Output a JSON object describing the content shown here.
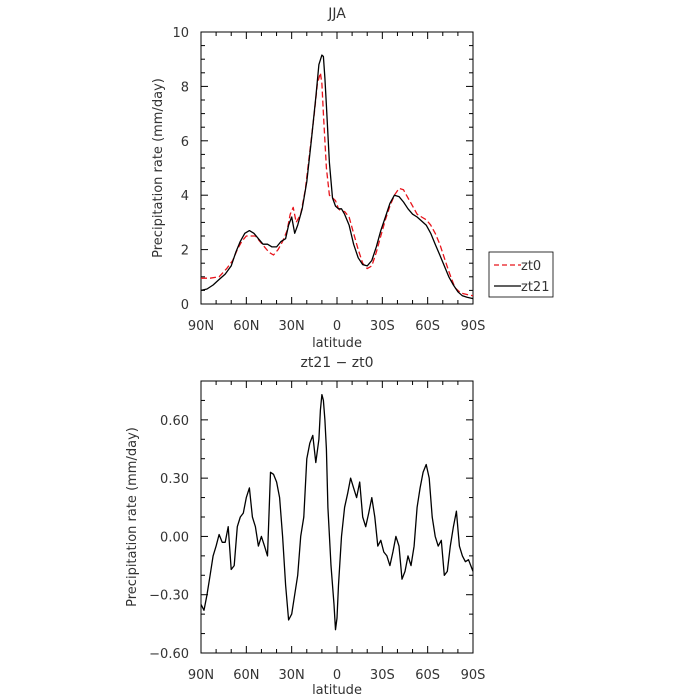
{
  "chart_data": [
    {
      "type": "line",
      "title": "JJA",
      "xlabel": "latitude",
      "ylabel": "Precipitation rate (mm/day)",
      "xlim": [
        90,
        -90
      ],
      "ylim": [
        0,
        10
      ],
      "x_ticks": [
        90,
        60,
        30,
        0,
        -30,
        -60,
        -90
      ],
      "x_tick_labels": [
        "90N",
        "60N",
        "30N",
        "0",
        "30S",
        "60S",
        "90S"
      ],
      "y_ticks": [
        0,
        2,
        4,
        6,
        8,
        10
      ],
      "y_tick_labels": [
        "0",
        "2",
        "4",
        "6",
        "8",
        "10"
      ],
      "legend": {
        "placement": "right",
        "entries": [
          "zt0",
          "zt21"
        ]
      },
      "series": [
        {
          "name": "zt0",
          "color": "#e8141b",
          "dash": "dashed",
          "x": [
            90,
            84,
            78,
            73,
            69,
            66,
            63,
            60,
            57,
            54,
            51,
            48,
            45,
            42,
            39,
            36,
            33,
            31,
            29,
            27,
            24,
            21,
            18,
            15,
            13,
            11,
            10,
            9,
            7,
            5,
            3,
            1,
            -1,
            -3,
            -5,
            -8,
            -11,
            -14,
            -17,
            -20,
            -23,
            -26,
            -29,
            -32,
            -35,
            -38,
            -41,
            -44,
            -47,
            -50,
            -53,
            -56,
            -59,
            -62,
            -65,
            -68,
            -71,
            -74,
            -78,
            -82,
            -86,
            -90
          ],
          "y": [
            0.95,
            0.95,
            1.0,
            1.3,
            1.6,
            2.0,
            2.3,
            2.5,
            2.5,
            2.5,
            2.3,
            2.1,
            1.9,
            1.8,
            2.0,
            2.3,
            2.7,
            3.3,
            3.55,
            3.0,
            3.3,
            4.2,
            5.6,
            7.0,
            8.1,
            8.5,
            8.1,
            7.0,
            5.0,
            4.0,
            3.9,
            3.8,
            3.5,
            3.4,
            3.4,
            3.2,
            2.6,
            2.0,
            1.5,
            1.3,
            1.4,
            1.9,
            2.5,
            3.1,
            3.6,
            4.0,
            4.25,
            4.2,
            3.9,
            3.6,
            3.3,
            3.2,
            3.1,
            2.9,
            2.6,
            2.2,
            1.7,
            1.2,
            0.6,
            0.4,
            0.35,
            0.3
          ]
        },
        {
          "name": "zt21",
          "color": "#000000",
          "dash": "solid",
          "x": [
            90,
            86,
            82,
            78,
            74,
            70,
            67,
            64,
            61,
            58,
            55,
            52,
            49,
            46,
            43,
            40,
            37,
            34,
            32,
            30,
            28,
            26,
            23,
            20,
            17,
            14,
            12,
            10,
            9,
            8,
            7,
            5,
            3,
            1,
            -1,
            -3,
            -5,
            -8,
            -11,
            -14,
            -17,
            -20,
            -23,
            -26,
            -29,
            -32,
            -35,
            -38,
            -41,
            -44,
            -47,
            -50,
            -53,
            -56,
            -59,
            -62,
            -65,
            -68,
            -71,
            -74,
            -77,
            -80,
            -83,
            -86,
            -90
          ],
          "y": [
            0.5,
            0.55,
            0.7,
            0.9,
            1.1,
            1.4,
            1.9,
            2.3,
            2.6,
            2.7,
            2.6,
            2.4,
            2.2,
            2.2,
            2.1,
            2.1,
            2.3,
            2.4,
            2.9,
            3.2,
            2.6,
            2.9,
            3.5,
            4.5,
            6.0,
            7.6,
            8.8,
            9.15,
            9.1,
            8.3,
            7.3,
            5.2,
            3.9,
            3.6,
            3.5,
            3.5,
            3.3,
            2.9,
            2.2,
            1.7,
            1.45,
            1.4,
            1.6,
            2.1,
            2.7,
            3.2,
            3.7,
            4.0,
            3.95,
            3.75,
            3.5,
            3.3,
            3.2,
            3.05,
            2.9,
            2.6,
            2.2,
            1.8,
            1.4,
            1.0,
            0.7,
            0.45,
            0.3,
            0.25,
            0.2
          ]
        }
      ]
    },
    {
      "type": "line",
      "title": "zt21 − zt0",
      "xlabel": "latitude",
      "ylabel": "Precipitation rate (mm/day)",
      "xlim": [
        90,
        -90
      ],
      "ylim": [
        -0.6,
        0.8
      ],
      "x_ticks": [
        90,
        60,
        30,
        0,
        -30,
        -60,
        -90
      ],
      "x_tick_labels": [
        "90N",
        "60N",
        "30N",
        "0",
        "30S",
        "60S",
        "90S"
      ],
      "y_ticks": [
        -0.6,
        -0.3,
        0,
        0.3,
        0.6
      ],
      "y_tick_labels": [
        "−0.60",
        "−0.30",
        "0.00",
        "0.30",
        "0.60"
      ],
      "series": [
        {
          "color": "#000000",
          "x": [
            90,
            88,
            86,
            84,
            82,
            80,
            78,
            76,
            74,
            72,
            70,
            68,
            66,
            64,
            62,
            60,
            58,
            56,
            54,
            52,
            50,
            48,
            46,
            44,
            42,
            40,
            38,
            36,
            34,
            32,
            30,
            28,
            26,
            24,
            22,
            20,
            18,
            16,
            14,
            12,
            11,
            10,
            9,
            8,
            7,
            6,
            4,
            2,
            1,
            0,
            -1,
            -3,
            -5,
            -7,
            -9,
            -11,
            -13,
            -15,
            -17,
            -19,
            -21,
            -23,
            -25,
            -27,
            -29,
            -31,
            -33,
            -35,
            -37,
            -39,
            -41,
            -43,
            -45,
            -47,
            -49,
            -51,
            -53,
            -55,
            -57,
            -59,
            -61,
            -63,
            -65,
            -67,
            -69,
            -71,
            -73,
            -75,
            -77,
            -79,
            -81,
            -83,
            -85,
            -87,
            -90
          ],
          "y": [
            -0.35,
            -0.38,
            -0.3,
            -0.2,
            -0.1,
            -0.05,
            0.01,
            -0.03,
            -0.03,
            0.05,
            -0.17,
            -0.15,
            0.05,
            0.1,
            0.12,
            0.2,
            0.25,
            0.1,
            0.05,
            -0.05,
            0.0,
            -0.05,
            -0.1,
            0.33,
            0.32,
            0.28,
            0.2,
            0.0,
            -0.25,
            -0.43,
            -0.4,
            -0.3,
            -0.2,
            0.0,
            0.1,
            0.4,
            0.48,
            0.52,
            0.38,
            0.5,
            0.65,
            0.73,
            0.7,
            0.6,
            0.45,
            0.15,
            -0.15,
            -0.35,
            -0.48,
            -0.42,
            -0.25,
            0.0,
            0.15,
            0.22,
            0.3,
            0.25,
            0.2,
            0.28,
            0.1,
            0.05,
            0.12,
            0.2,
            0.1,
            -0.05,
            -0.02,
            -0.08,
            -0.1,
            -0.15,
            -0.08,
            0.0,
            -0.05,
            -0.22,
            -0.18,
            -0.1,
            -0.15,
            -0.05,
            0.15,
            0.25,
            0.33,
            0.37,
            0.3,
            0.1,
            0.0,
            -0.05,
            -0.02,
            -0.2,
            -0.18,
            -0.05,
            0.05,
            0.13,
            -0.05,
            -0.1,
            -0.13,
            -0.12,
            -0.18
          ]
        }
      ]
    }
  ]
}
